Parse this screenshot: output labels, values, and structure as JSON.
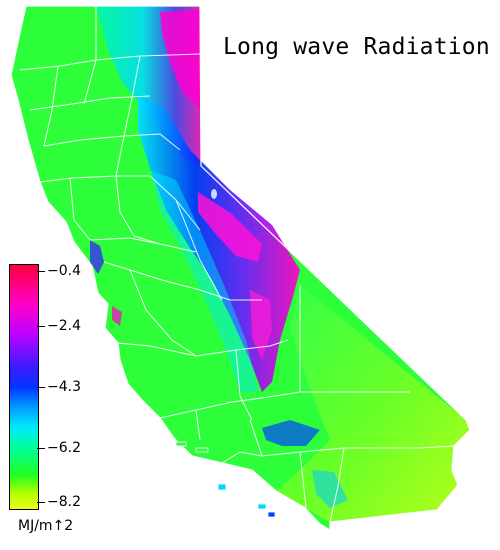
{
  "map": {
    "title": "Long wave Radiation",
    "region": "California",
    "colors": {
      "max": "#ff003c",
      "high": "#ff00c8",
      "upper_mid": "#5a1cff",
      "mid": "#0033ff",
      "lower_mid": "#00e6ff",
      "low": "#22ff22",
      "min": "#e8ff1a",
      "boundaries": "#ffffff"
    }
  },
  "legend": {
    "labels": [
      "−0.4",
      "−2.4",
      "−4.3",
      "−6.2",
      "−8.2"
    ],
    "unit": "MJ/m↑2"
  }
}
